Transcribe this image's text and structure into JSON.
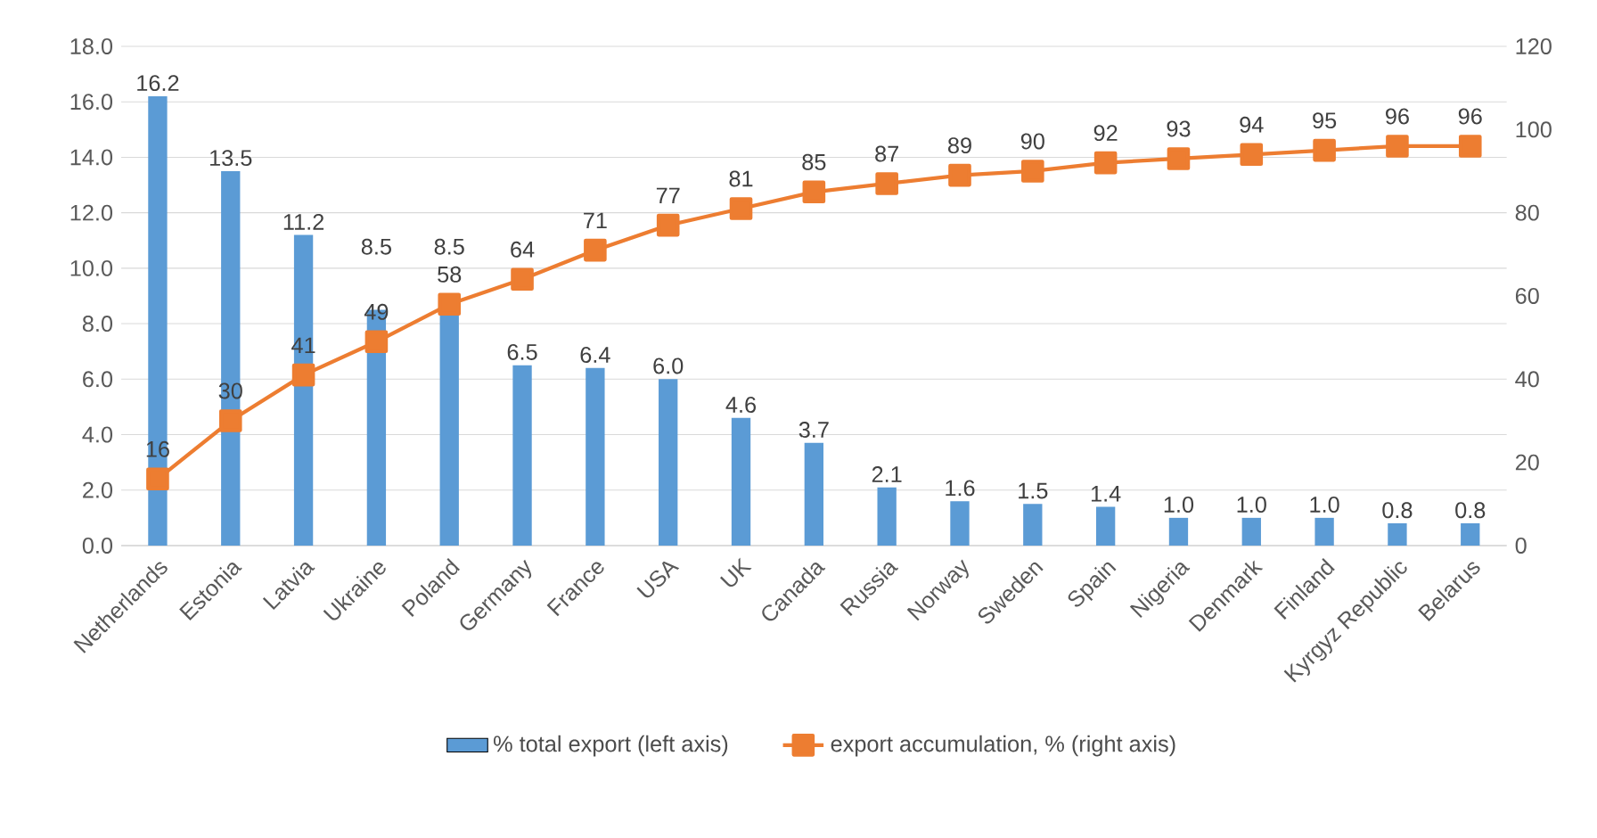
{
  "chart_data": {
    "type": "bar",
    "categories": [
      "Netherlands",
      "Estonia",
      "Latvia",
      "Ukraine",
      "Poland",
      "Germany",
      "France",
      "USA",
      "UK",
      "Canada",
      "Russia",
      "Norway",
      "Sweden",
      "Spain",
      "Nigeria",
      "Denmark",
      "Finland",
      "Kyrgyz Republic",
      "Belarus"
    ],
    "series": [
      {
        "name": "% total export (left axis)",
        "type": "bar",
        "color": "#5b9bd5",
        "values": [
          16.2,
          13.5,
          11.2,
          8.5,
          8.5,
          6.5,
          6.4,
          6.0,
          4.6,
          3.7,
          2.1,
          1.6,
          1.5,
          1.4,
          1.0,
          1.0,
          1.0,
          0.8,
          0.8
        ],
        "value_labels": [
          "16.2",
          "13.5",
          "11.2",
          "8.5",
          "8.5",
          "6.5",
          "6.4",
          "6.0",
          "4.6",
          "3.7",
          "2.1",
          "1.6",
          "1.5",
          "1.4",
          "1.0",
          "1.0",
          "1.0",
          "0.8",
          "0.8"
        ]
      },
      {
        "name": "export accumulation, % (right axis)",
        "type": "line",
        "axis": "y2",
        "marker": "square",
        "color": "#ed7d31",
        "values": [
          16,
          30,
          41,
          49,
          58,
          64,
          71,
          77,
          81,
          85,
          87,
          89,
          90,
          92,
          93,
          94,
          95,
          96,
          96
        ],
        "value_labels": [
          "16",
          "30",
          "41",
          "49",
          "58",
          "64",
          "71",
          "77",
          "81",
          "85",
          "87",
          "89",
          "90",
          "92",
          "93",
          "94",
          "95",
          "96",
          "96"
        ]
      }
    ],
    "ylim": [
      0,
      18
    ],
    "yticks": [
      {
        "value": 0,
        "label": "0.0"
      },
      {
        "value": 2,
        "label": "2.0"
      },
      {
        "value": 4,
        "label": "4.0"
      },
      {
        "value": 6,
        "label": "6.0"
      },
      {
        "value": 8,
        "label": "8.0"
      },
      {
        "value": 10,
        "label": "10.0"
      },
      {
        "value": 12,
        "label": "12.0"
      },
      {
        "value": 14,
        "label": "14.0"
      },
      {
        "value": 16,
        "label": "16.0"
      },
      {
        "value": 18,
        "label": "18.0"
      }
    ],
    "y2lim": [
      0,
      120
    ],
    "y2ticks": [
      0,
      20,
      40,
      60,
      80,
      100,
      120
    ],
    "grid": "y",
    "legend": "bottom"
  }
}
